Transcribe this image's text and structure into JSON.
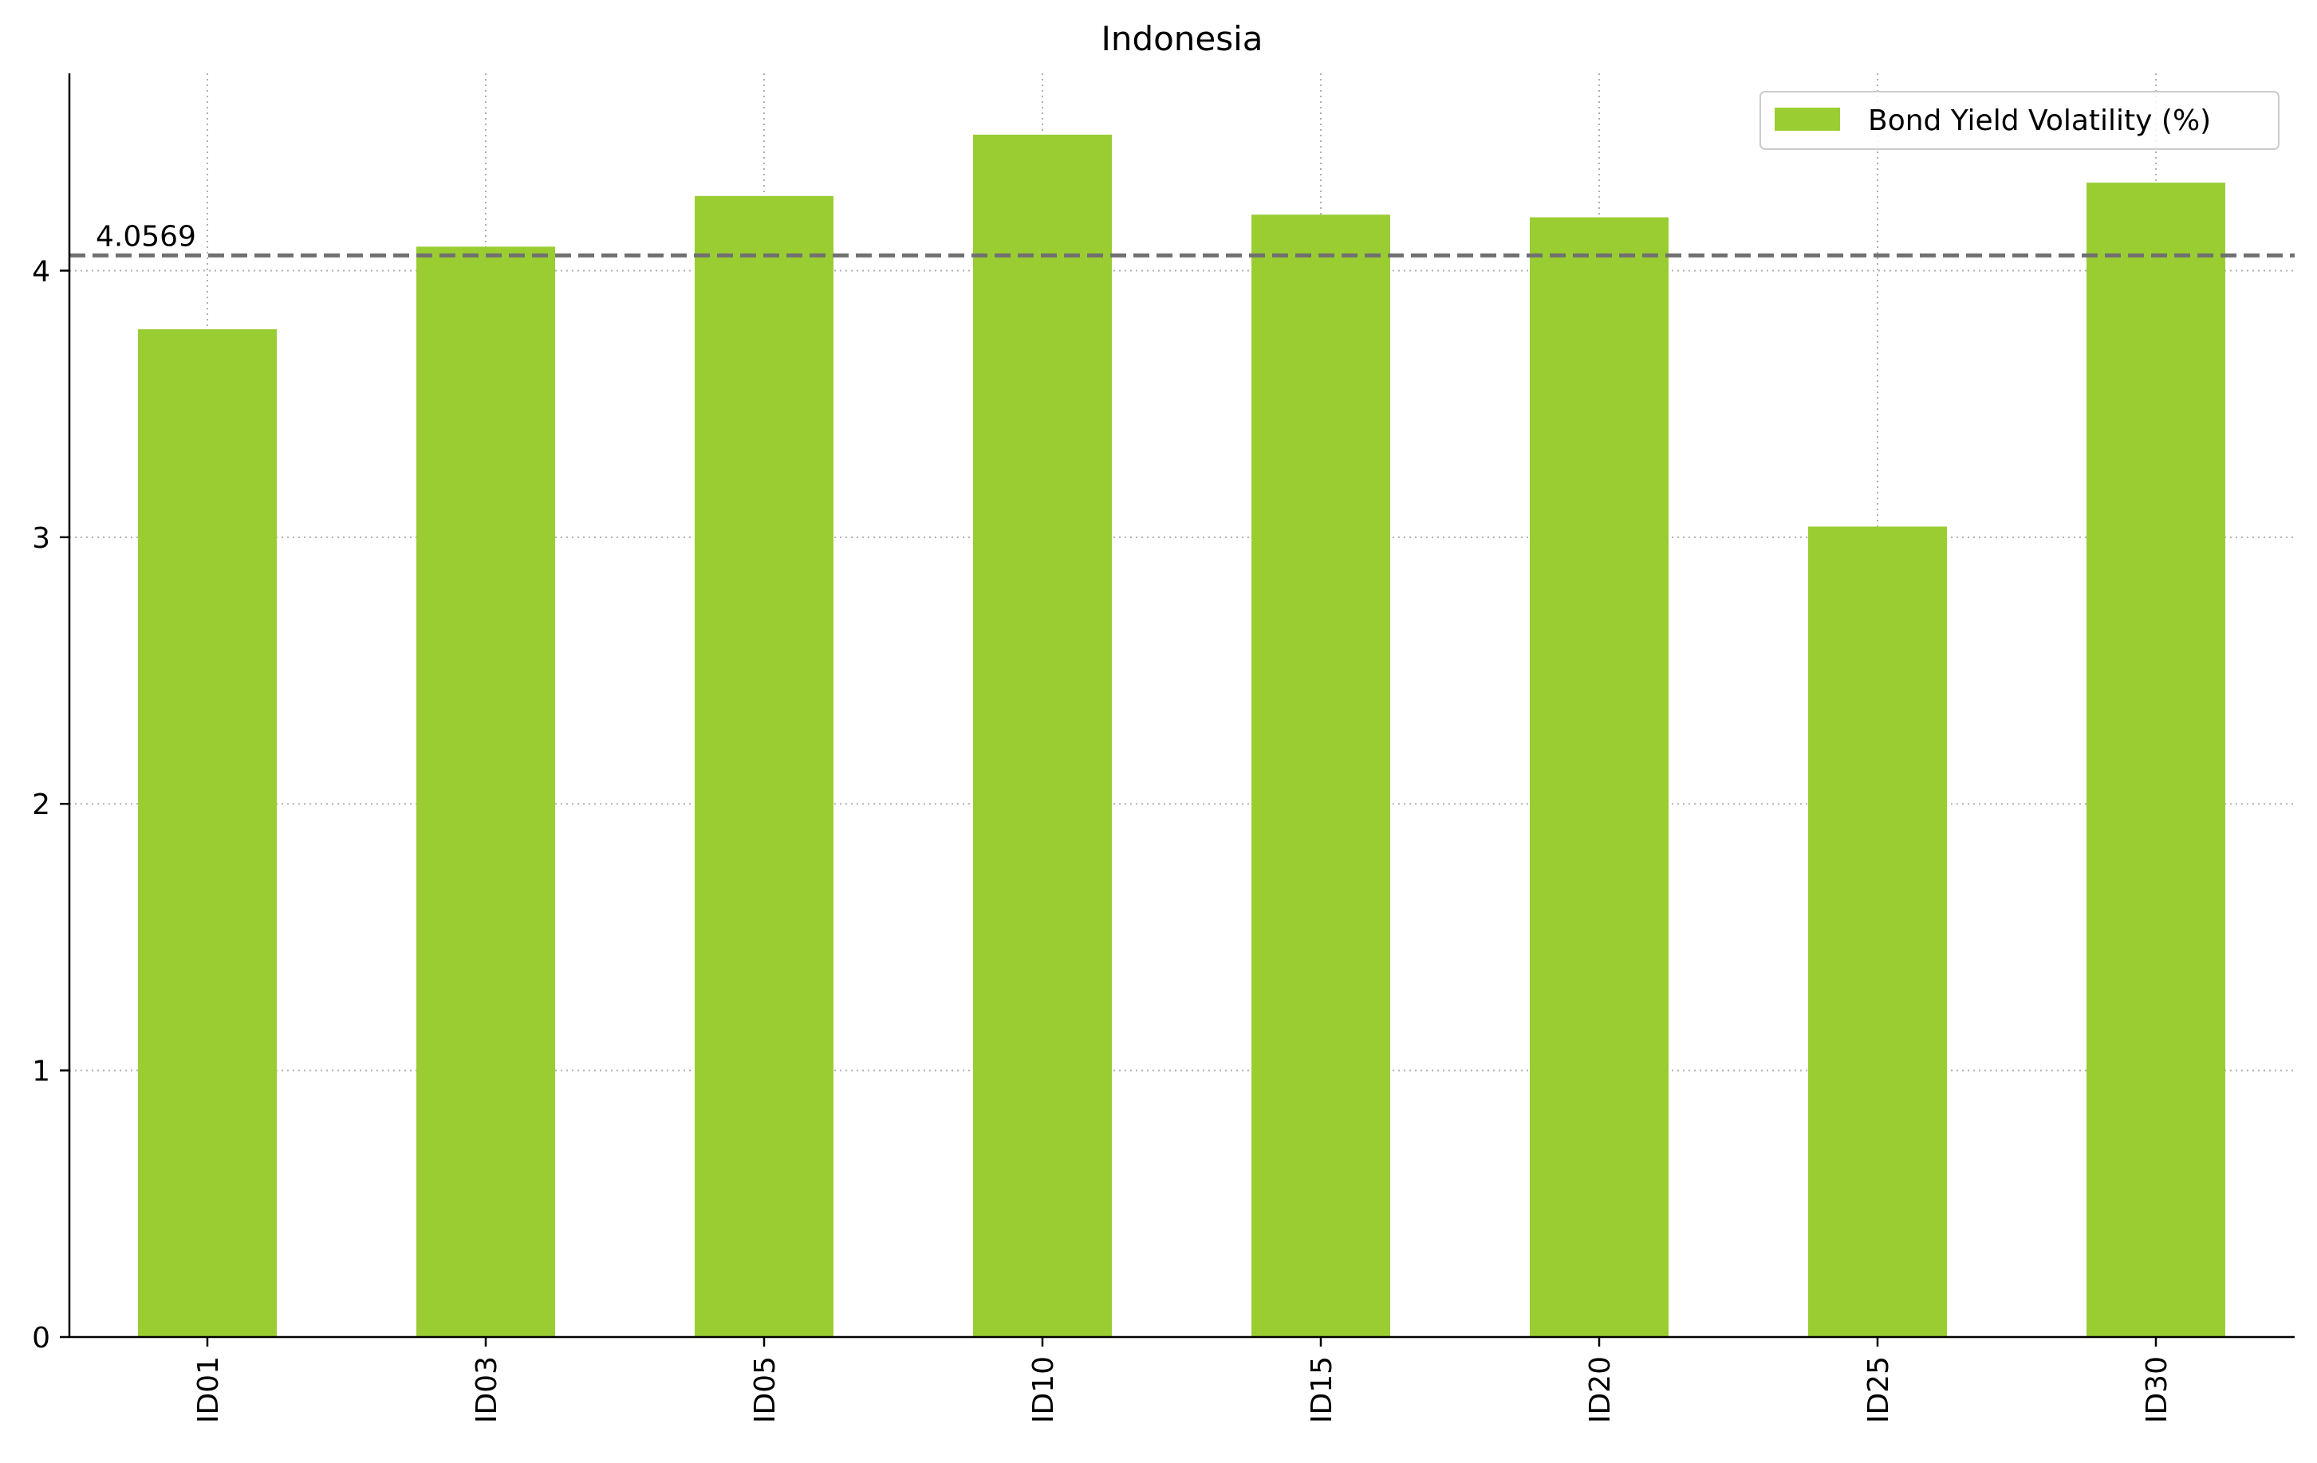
{
  "chart_data": {
    "type": "bar",
    "title": "Indonesia",
    "xlabel": "",
    "ylabel": "",
    "categories": [
      "ID01",
      "ID03",
      "ID05",
      "ID10",
      "ID15",
      "ID20",
      "ID25",
      "ID30"
    ],
    "series": [
      {
        "name": "Bond Yield Volatility (%)",
        "color": "#9acd32",
        "values": [
          3.78,
          4.09,
          4.28,
          4.51,
          4.21,
          4.2,
          3.04,
          4.33
        ]
      }
    ],
    "ylim": [
      0,
      4.74
    ],
    "yticks": [
      0,
      1,
      2,
      3,
      4
    ],
    "grid": true,
    "legend_position": "top-right",
    "reference_line": {
      "value": 4.0569,
      "label": "4.0569",
      "color": "#707070",
      "style": "dashed"
    }
  }
}
